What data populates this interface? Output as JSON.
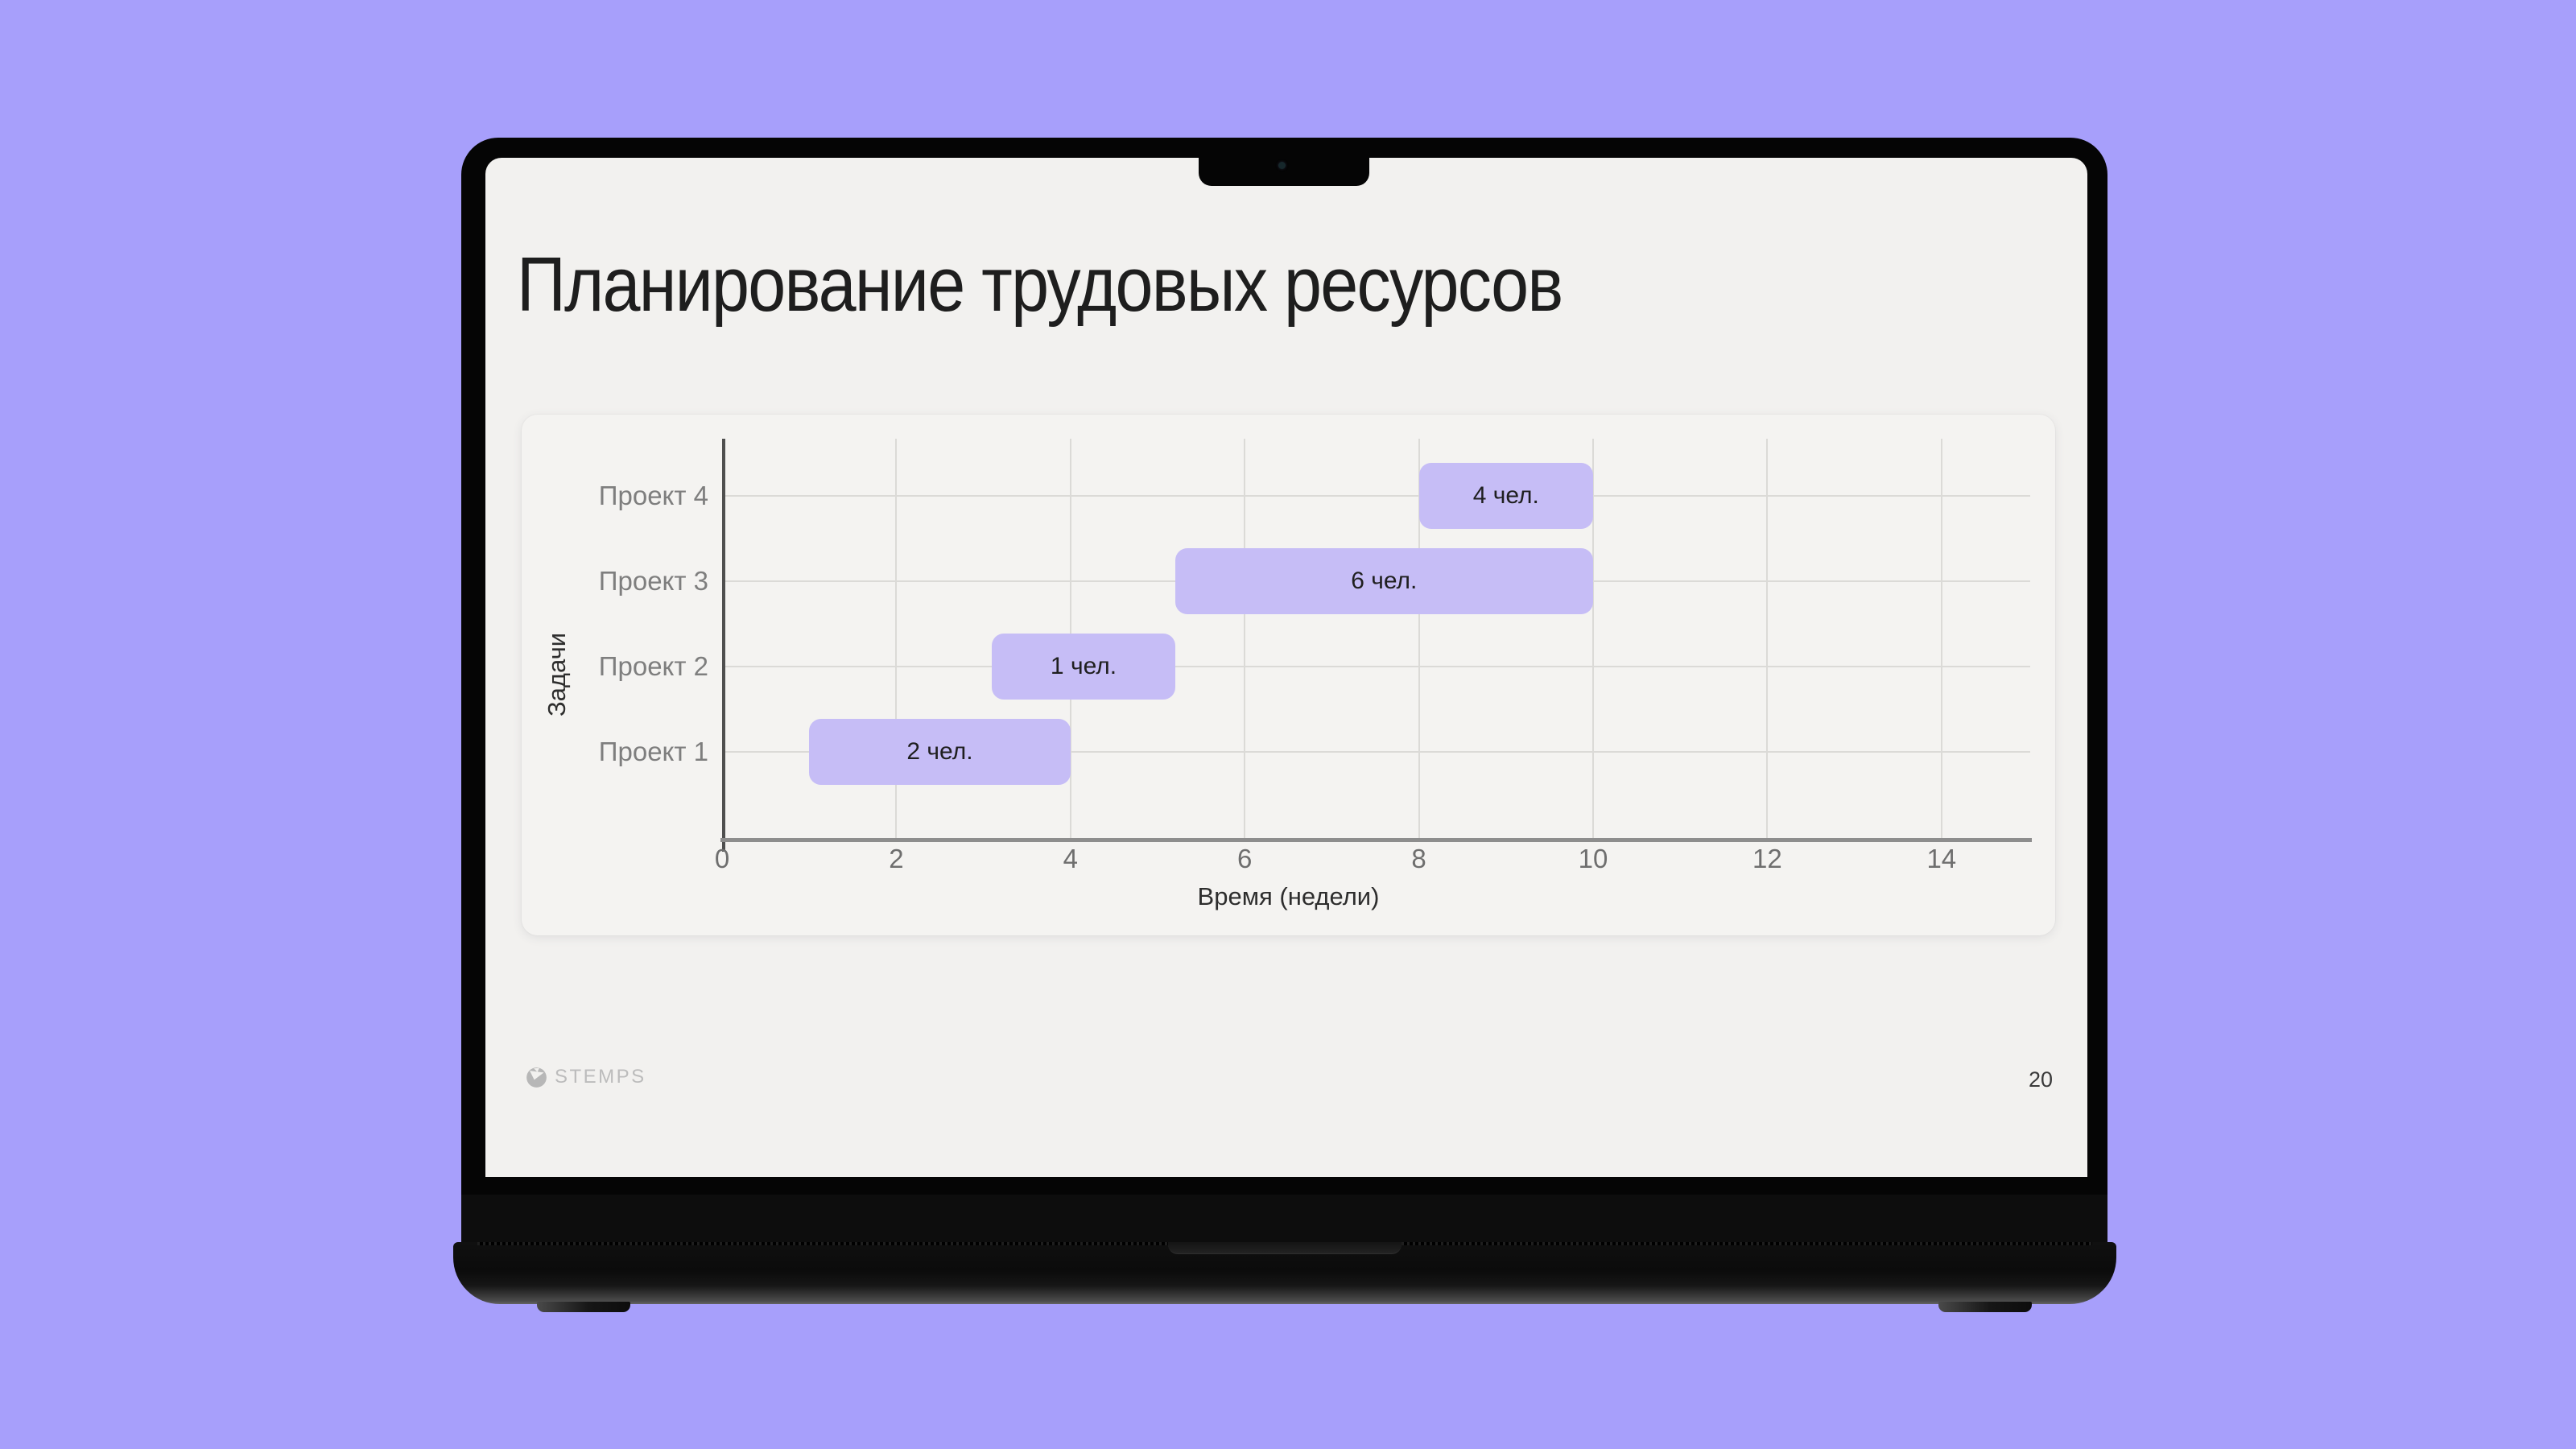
{
  "slide": {
    "title": "Планирование трудовых ресурсов",
    "footer": {
      "logo_text": "STEMPS",
      "page_number": "20"
    }
  },
  "chart_data": {
    "type": "bar",
    "variant": "horizontal-gantt",
    "title": "",
    "xlabel": "Время (недели)",
    "ylabel": "Задачи",
    "xlim": [
      0,
      15
    ],
    "x_ticks": [
      0,
      2,
      4,
      6,
      8,
      10,
      12,
      14
    ],
    "grid": true,
    "legend": false,
    "categories_top_to_bottom": [
      "Проект 4",
      "Проект 3",
      "Проект 2",
      "Проект 1"
    ],
    "tasks": [
      {
        "name": "Проект 4",
        "start": 8,
        "end": 10,
        "label": "4 чел."
      },
      {
        "name": "Проект 3",
        "start": 5.2,
        "end": 10,
        "label": "6 чел."
      },
      {
        "name": "Проект 2",
        "start": 3.1,
        "end": 5.2,
        "label": "1 чел."
      },
      {
        "name": "Проект 1",
        "start": 1,
        "end": 4,
        "label": "2 чел."
      }
    ],
    "bar_color": "#c6bdf6"
  },
  "colors": {
    "background": "#a79ffb",
    "slide_bg": "#f2f1ef",
    "bar_fill": "#c6bdf6",
    "title_text": "#1e1e1e",
    "axis_label_text": "#2d2d2d",
    "category_text": "#7e7e7e",
    "tick_text": "#6e6e6e",
    "footer_text": "#bcbcbc",
    "page_number_text": "#3a3a3a"
  }
}
